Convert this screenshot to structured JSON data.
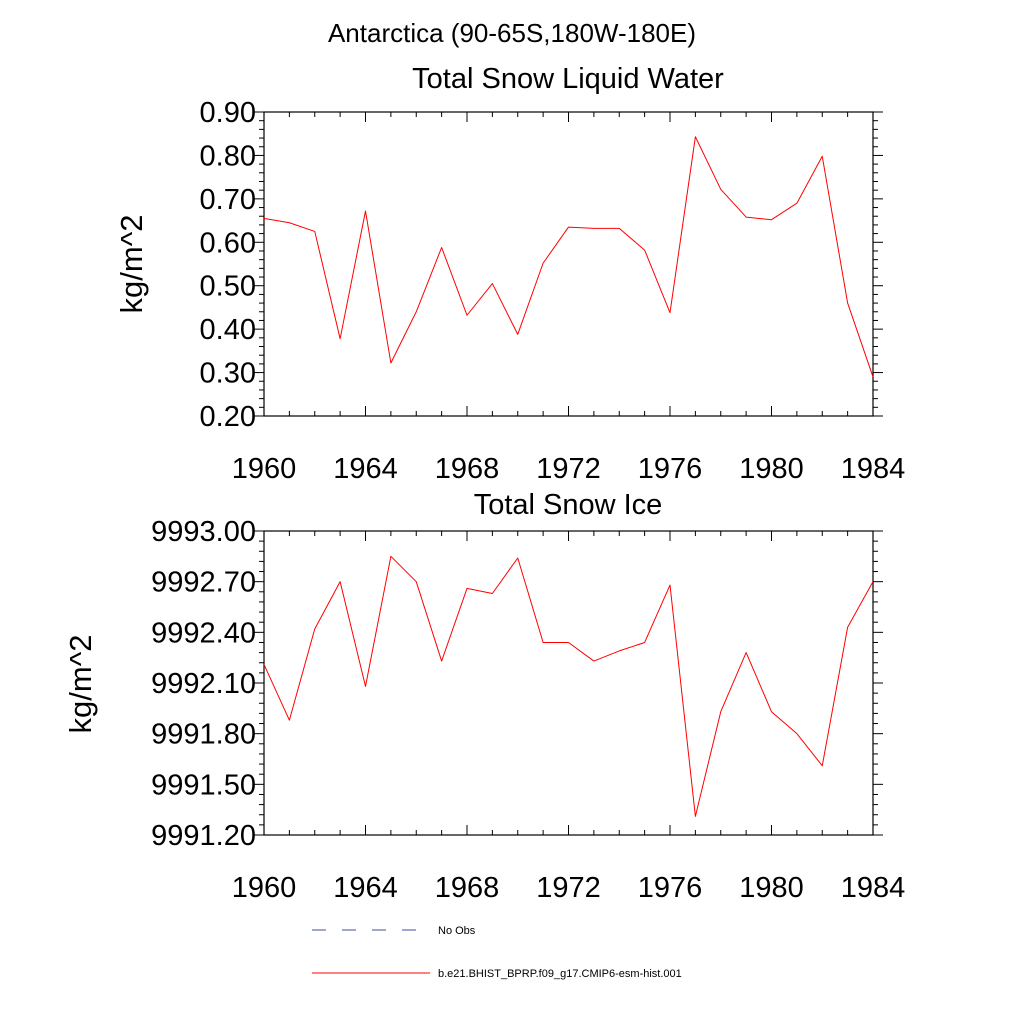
{
  "main_title": "Antarctica (90-65S,180W-180E)",
  "legend": {
    "no_obs_label": "No Obs",
    "no_obs_color": "#3f4f9f",
    "model_label": "b.e21.BHIST_BPRP.f09_g17.CMIP6-esm-hist.001",
    "model_color": "#ff0000"
  },
  "chart_data": [
    {
      "type": "line",
      "title": "Total Snow Liquid Water",
      "xlabel": "",
      "ylabel": "kg/m^2",
      "xlim": [
        1960,
        1984
      ],
      "ylim": [
        0.2,
        0.9
      ],
      "x_ticks": [
        "1960",
        "1964",
        "1968",
        "1972",
        "1976",
        "1980",
        "1984"
      ],
      "y_ticks": [
        "0.20",
        "0.30",
        "0.40",
        "0.50",
        "0.60",
        "0.70",
        "0.80",
        "0.90"
      ],
      "grid": false,
      "series": [
        {
          "color": "#ff0000",
          "x": [
            1960,
            1961,
            1962,
            1963,
            1964,
            1965,
            1966,
            1967,
            1968,
            1969,
            1970,
            1971,
            1972,
            1973,
            1974,
            1975,
            1976,
            1977,
            1978,
            1979,
            1980,
            1981,
            1982,
            1983,
            1984
          ],
          "y": [
            0.655,
            0.645,
            0.625,
            0.378,
            0.672,
            0.322,
            0.44,
            0.588,
            0.432,
            0.505,
            0.388,
            0.552,
            0.635,
            0.632,
            0.632,
            0.582,
            0.438,
            0.843,
            0.722,
            0.658,
            0.652,
            0.69,
            0.798,
            0.46,
            0.29
          ]
        }
      ]
    },
    {
      "type": "line",
      "title": "Total Snow Ice",
      "xlabel": "",
      "ylabel": "kg/m^2",
      "xlim": [
        1960,
        1984
      ],
      "ylim": [
        9991.2,
        9993.0
      ],
      "x_ticks": [
        "1960",
        "1964",
        "1968",
        "1972",
        "1976",
        "1980",
        "1984"
      ],
      "y_ticks": [
        "9991.20",
        "9991.50",
        "9991.80",
        "9992.10",
        "9992.40",
        "9992.70",
        "9993.00"
      ],
      "grid": false,
      "series": [
        {
          "color": "#ff0000",
          "x": [
            1960,
            1961,
            1962,
            1963,
            1964,
            1965,
            1966,
            1967,
            1968,
            1969,
            1970,
            1971,
            1972,
            1973,
            1974,
            1975,
            1976,
            1977,
            1978,
            1979,
            1980,
            1981,
            1982,
            1983,
            1984
          ],
          "y": [
            9992.21,
            9991.88,
            9992.42,
            9992.7,
            9992.08,
            9992.85,
            9992.7,
            9992.23,
            9992.66,
            9992.63,
            9992.84,
            9992.34,
            9992.34,
            9992.23,
            9992.29,
            9992.34,
            9992.68,
            9991.31,
            9991.93,
            9992.28,
            9991.93,
            9991.8,
            9991.61,
            9992.43,
            9992.7
          ]
        }
      ]
    }
  ]
}
